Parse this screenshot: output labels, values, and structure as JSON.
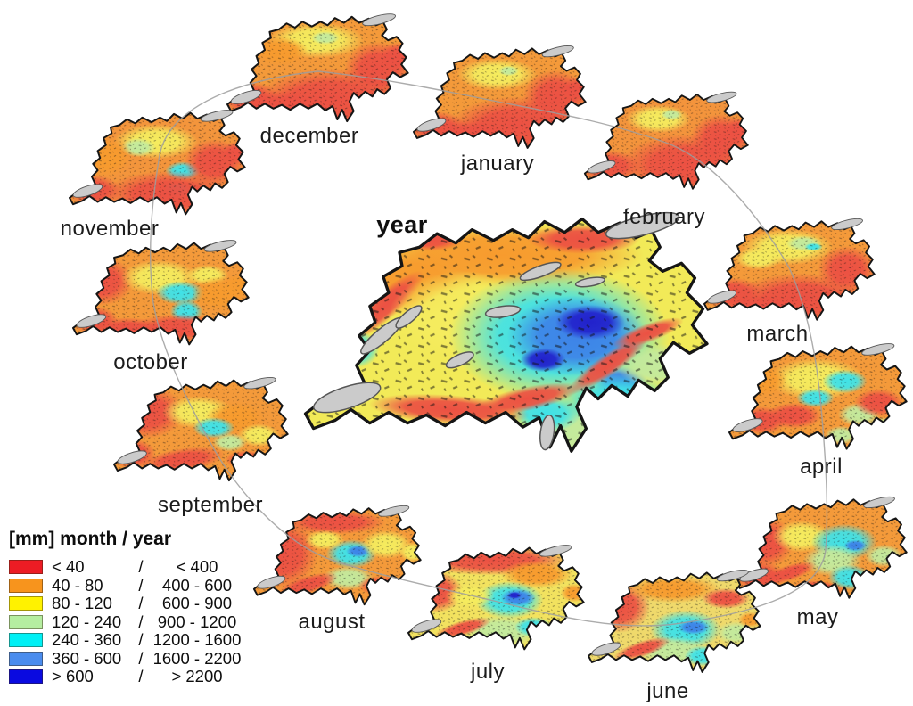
{
  "figure": {
    "center": {
      "label": "year"
    },
    "months": [
      {
        "label": "january"
      },
      {
        "label": "february"
      },
      {
        "label": "march"
      },
      {
        "label": "april"
      },
      {
        "label": "may"
      },
      {
        "label": "june"
      },
      {
        "label": "july"
      },
      {
        "label": "august"
      },
      {
        "label": "september"
      },
      {
        "label": "october"
      },
      {
        "label": "november"
      },
      {
        "label": "december"
      }
    ]
  },
  "legend": {
    "title": "[mm] month / year",
    "separator": "/",
    "classes": [
      {
        "color": "#ec1c24",
        "month_range": "< 40",
        "year_range": "< 400"
      },
      {
        "color": "#f7941d",
        "month_range": "40 - 80",
        "year_range": "400 - 600"
      },
      {
        "color": "#fff200",
        "month_range": "80 - 120",
        "year_range": "600 - 900"
      },
      {
        "color": "#b5eda0",
        "month_range": "120 - 240",
        "year_range": "900 - 1200"
      },
      {
        "color": "#00f0f5",
        "month_range": "240 - 360",
        "year_range": "1200 - 1600"
      },
      {
        "color": "#4a8cee",
        "month_range": "360 - 600",
        "year_range": "1600 - 2200"
      },
      {
        "color": "#0a0ae0",
        "month_range": "> 600",
        "year_range": "> 2200"
      }
    ]
  },
  "chart_data": {
    "type": "heatmap",
    "subject": "Precipitation maps of Switzerland",
    "layout": "twelve monthly maps arranged in an oval ring around one large annual map; legend at bottom left",
    "center_map": "year",
    "ring_order_clockwise_from_top_left": [
      "december",
      "january",
      "february",
      "march",
      "april",
      "may",
      "june",
      "july",
      "august",
      "september",
      "october",
      "november"
    ],
    "legend_unit": "mm",
    "classes": [
      {
        "color": "#ec1c24",
        "month_range": "< 40",
        "year_range": "< 400"
      },
      {
        "color": "#f7941d",
        "month_range": "40 - 80",
        "year_range": "400 - 600"
      },
      {
        "color": "#fff200",
        "month_range": "80 - 120",
        "year_range": "600 - 900"
      },
      {
        "color": "#b5eda0",
        "month_range": "120 - 240",
        "year_range": "900 - 1200"
      },
      {
        "color": "#00f0f5",
        "month_range": "240 - 360",
        "year_range": "1200 - 1600"
      },
      {
        "color": "#4a8cee",
        "month_range": "360 - 600",
        "year_range": "1600 - 2200"
      },
      {
        "color": "#0a0ae0",
        "month_range": "> 600",
        "year_range": "> 2200"
      }
    ]
  }
}
